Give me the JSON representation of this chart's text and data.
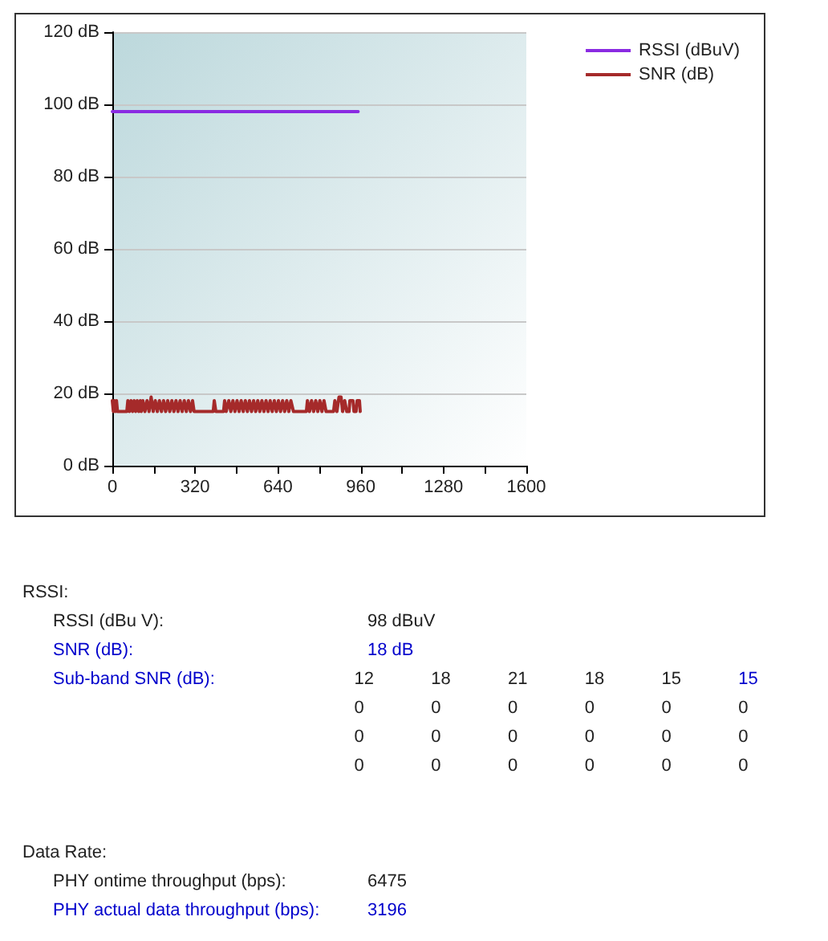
{
  "chart_data": {
    "type": "line",
    "xlim": [
      0,
      1600
    ],
    "xticks": [
      0,
      {
        "value": 160,
        "label": null
      },
      320,
      {
        "value": 480,
        "label": null
      },
      640,
      {
        "value": 800,
        "label": null
      },
      960,
      {
        "value": 1120,
        "label": null
      },
      1280,
      {
        "value": 1440,
        "label": null
      },
      1600
    ],
    "ylim": [
      0,
      120
    ],
    "yticks": [
      {
        "value": 0,
        "label": "0 dB"
      },
      {
        "value": 20,
        "label": "20 dB"
      },
      {
        "value": 40,
        "label": "40 dB"
      },
      {
        "value": 60,
        "label": "60 dB"
      },
      {
        "value": 80,
        "label": "80 dB"
      },
      {
        "value": 100,
        "label": "100 dB"
      },
      {
        "value": 120,
        "label": "120 dB"
      }
    ],
    "grid": "y",
    "legend": "top right",
    "marker": "none",
    "line_style": "solid",
    "series": [
      {
        "name": "RSSI (dBuV)",
        "color": "#8a2be2",
        "x": [
          0,
          950
        ],
        "values": [
          98,
          98
        ]
      },
      {
        "name": "SNR (dB)",
        "color": "#a52a2a",
        "x": [
          0,
          4,
          8,
          12,
          16,
          20,
          56,
          60,
          66,
          72,
          78,
          84,
          90,
          96,
          102,
          108,
          112,
          118,
          126,
          134,
          142,
          150,
          158,
          166,
          174,
          182,
          190,
          198,
          206,
          214,
          222,
          230,
          238,
          246,
          254,
          262,
          270,
          278,
          286,
          294,
          302,
          310,
          316,
          390,
          394,
          400,
          430,
          434,
          440,
          450,
          458,
          466,
          474,
          482,
          490,
          498,
          506,
          514,
          522,
          530,
          538,
          546,
          554,
          562,
          570,
          578,
          586,
          594,
          602,
          610,
          618,
          626,
          634,
          642,
          650,
          658,
          666,
          674,
          682,
          690,
          700,
          750,
          754,
          762,
          770,
          778,
          786,
          794,
          802,
          810,
          818,
          826,
          830,
          855,
          860,
          868,
          876,
          884,
          890,
          898,
          906,
          915,
          918,
          930,
          934,
          942,
          946,
          955,
          958
        ],
        "values": [
          18,
          15,
          18,
          15,
          18,
          15,
          15,
          18,
          15,
          18,
          15,
          18,
          15,
          18,
          15,
          18,
          15,
          18,
          15,
          18,
          15,
          19,
          15,
          18,
          15,
          18,
          15,
          18,
          15,
          18,
          15,
          18,
          15,
          18,
          15,
          18,
          15,
          18,
          15,
          18,
          15,
          18,
          15,
          15,
          18,
          15,
          15,
          18,
          15,
          18,
          15,
          18,
          15,
          18,
          15,
          18,
          15,
          18,
          15,
          18,
          15,
          18,
          15,
          18,
          15,
          18,
          15,
          18,
          15,
          18,
          15,
          18,
          15,
          18,
          15,
          18,
          15,
          18,
          15,
          18,
          15,
          15,
          18,
          15,
          18,
          15,
          18,
          15,
          18,
          15,
          18,
          15,
          15,
          15,
          18,
          15,
          19,
          19,
          15,
          18,
          15,
          15,
          18,
          18,
          15,
          15,
          18,
          18,
          15
        ]
      }
    ],
    "annotations": [
      "RSSI:",
      "RSSI (dBu V):\t98 dBuV",
      "SNR (dB):\t18 dB",
      "Sub-band SNR (dB):\t12\t18\t21\t18\t15\t15",
      "\t0\t0\t0\t0\t0\t0",
      "\t0\t0\t0\t0\t0\t0",
      "\t0\t0\t0\t0\t0\t0",
      "Data Rate:",
      "PHY ontime throughput (bps):\t6475",
      "PHY actual data throughput (bps):\t3196"
    ]
  }
}
